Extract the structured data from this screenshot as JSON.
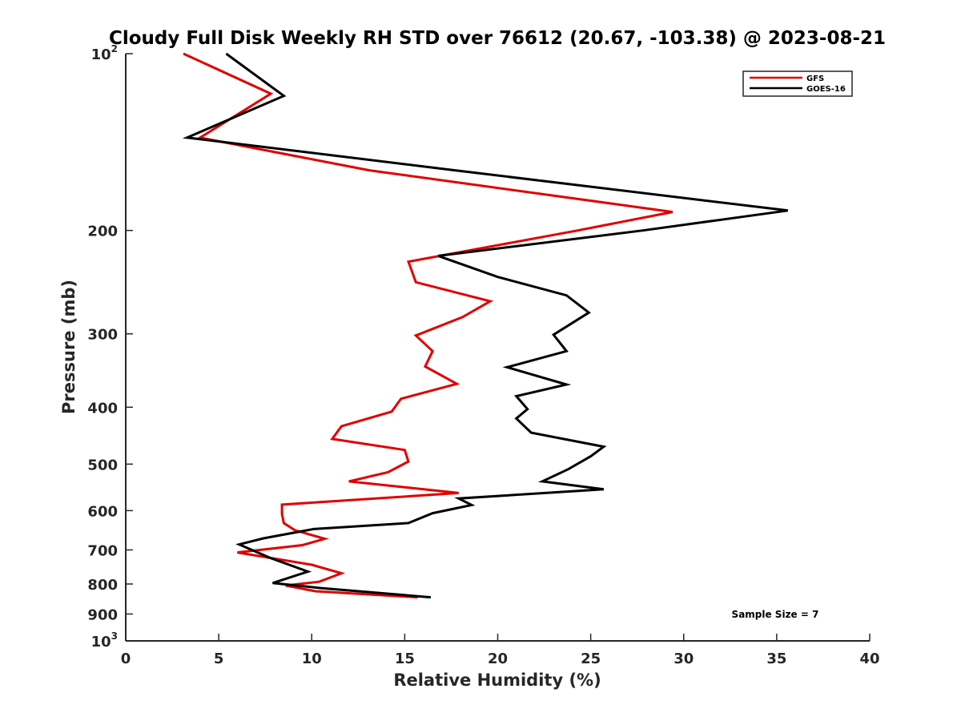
{
  "chart_data": {
    "type": "line",
    "title": "Cloudy Full Disk Weekly RH STD over 76612 (20.67, -103.38) @ 2023-08-21",
    "xlabel": "Relative Humidity (%)",
    "ylabel": "Pressure (mb)",
    "xlim": [
      0,
      40
    ],
    "ylim": [
      100,
      1000
    ],
    "yscale": "log",
    "y_reversed": true,
    "x_ticks": [
      0,
      5,
      10,
      15,
      20,
      25,
      30,
      35,
      40
    ],
    "x_tick_labels": [
      "0",
      "5",
      "10",
      "15",
      "20",
      "25",
      "30",
      "35",
      "40"
    ],
    "y_ticks": [
      {
        "value": 100,
        "base": "10",
        "exp": "2"
      },
      {
        "value": 200,
        "label": "200"
      },
      {
        "value": 300,
        "label": "300"
      },
      {
        "value": 400,
        "label": "400"
      },
      {
        "value": 500,
        "label": "500"
      },
      {
        "value": 600,
        "label": "600"
      },
      {
        "value": 700,
        "label": "700"
      },
      {
        "value": 800,
        "label": "800"
      },
      {
        "value": 900,
        "label": "900"
      },
      {
        "value": 1000,
        "base": "10",
        "exp": "3"
      }
    ],
    "legend_position": "top-right",
    "annotation": "Sample Size = 7",
    "series": [
      {
        "name": "GFS",
        "color": "#e00000",
        "points": [
          [
            3.1,
            100
          ],
          [
            7.8,
            117
          ],
          [
            4.0,
            139
          ],
          [
            13.1,
            158
          ],
          [
            29.4,
            186
          ],
          [
            24.3,
            200
          ],
          [
            15.2,
            226
          ],
          [
            15.6,
            245
          ],
          [
            19.6,
            264
          ],
          [
            18.1,
            281
          ],
          [
            15.6,
            302
          ],
          [
            16.5,
            321
          ],
          [
            16.1,
            341
          ],
          [
            17.8,
            365
          ],
          [
            14.8,
            387
          ],
          [
            14.3,
            407
          ],
          [
            11.6,
            431
          ],
          [
            11.1,
            453
          ],
          [
            15.0,
            473
          ],
          [
            15.2,
            495
          ],
          [
            14.1,
            516
          ],
          [
            12.0,
            535
          ],
          [
            17.9,
            560
          ],
          [
            8.4,
            586
          ],
          [
            8.4,
            608
          ],
          [
            8.5,
            630
          ],
          [
            9.1,
            648
          ],
          [
            10.7,
            670
          ],
          [
            9.5,
            687
          ],
          [
            6.0,
            707
          ],
          [
            10.0,
            742
          ],
          [
            11.6,
            767
          ],
          [
            10.4,
            793
          ],
          [
            8.6,
            805
          ],
          [
            10.2,
            823
          ],
          [
            15.7,
            843
          ]
        ]
      },
      {
        "name": "GOES-16",
        "color": "#000000",
        "points": [
          [
            5.4,
            100
          ],
          [
            8.5,
            118
          ],
          [
            3.3,
            139
          ],
          [
            17.7,
            158
          ],
          [
            35.6,
            185
          ],
          [
            27.8,
            200
          ],
          [
            16.8,
            221
          ],
          [
            20.0,
            240
          ],
          [
            23.7,
            258
          ],
          [
            24.9,
            276
          ],
          [
            23.0,
            301
          ],
          [
            23.7,
            321
          ],
          [
            20.5,
            342
          ],
          [
            23.7,
            366
          ],
          [
            21.0,
            383
          ],
          [
            21.6,
            403
          ],
          [
            21.0,
            418
          ],
          [
            21.8,
            442
          ],
          [
            25.7,
            467
          ],
          [
            25.0,
            485
          ],
          [
            23.8,
            510
          ],
          [
            22.4,
            535
          ],
          [
            25.7,
            552
          ],
          [
            17.9,
            572
          ],
          [
            18.6,
            587
          ],
          [
            16.5,
            606
          ],
          [
            15.2,
            630
          ],
          [
            10.1,
            645
          ],
          [
            7.4,
            669
          ],
          [
            6.1,
            685
          ],
          [
            7.8,
            723
          ],
          [
            9.8,
            762
          ],
          [
            7.9,
            797
          ],
          [
            10.5,
            813
          ],
          [
            16.4,
            843
          ]
        ]
      }
    ]
  }
}
